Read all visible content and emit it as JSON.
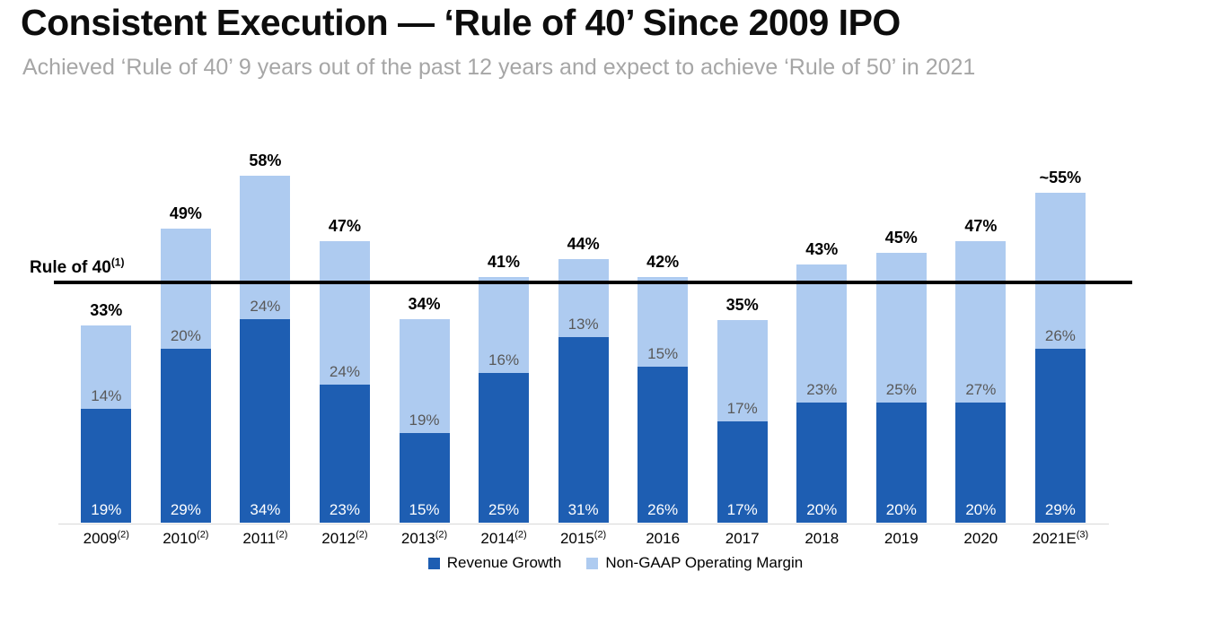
{
  "slide": {
    "title": "Consistent Execution — ‘Rule of 40’ Since 2009 IPO",
    "subtitle": "Achieved ‘Rule of 40’ 9 years out of the past 12 years and expect to achieve ‘Rule of 50’ in 2021"
  },
  "chart_data": {
    "type": "bar",
    "stacked": true,
    "title": "",
    "xlabel": "",
    "ylabel": "",
    "ylim": [
      0,
      62
    ],
    "grid": false,
    "legend_position": "bottom-center",
    "categories": [
      "2009",
      "2010",
      "2011",
      "2012",
      "2013",
      "2014",
      "2015",
      "2016",
      "2017",
      "2018",
      "2019",
      "2020",
      "2021E"
    ],
    "category_superscripts": [
      "(2)",
      "(2)",
      "(2)",
      "(2)",
      "(2)",
      "(2)",
      "(2)",
      "",
      "",
      "",
      "",
      "",
      "(3)"
    ],
    "series": [
      {
        "name": "Revenue Growth",
        "color": "#1e5eb2",
        "label_color": "#ffffff",
        "values": [
          19,
          29,
          34,
          23,
          15,
          25,
          31,
          26,
          17,
          20,
          20,
          20,
          29
        ]
      },
      {
        "name": "Non-GAAP Operating Margin",
        "color": "#aecbf0",
        "label_color": "#595959",
        "values": [
          14,
          20,
          24,
          24,
          19,
          16,
          13,
          15,
          17,
          23,
          25,
          27,
          26
        ]
      }
    ],
    "total_labels": [
      "33%",
      "49%",
      "58%",
      "47%",
      "34%",
      "41%",
      "44%",
      "42%",
      "35%",
      "43%",
      "45%",
      "47%",
      "~55%"
    ],
    "reference_line": {
      "label": "Rule of 40",
      "label_superscript": "(1)",
      "value": 40,
      "color": "#000000"
    }
  }
}
